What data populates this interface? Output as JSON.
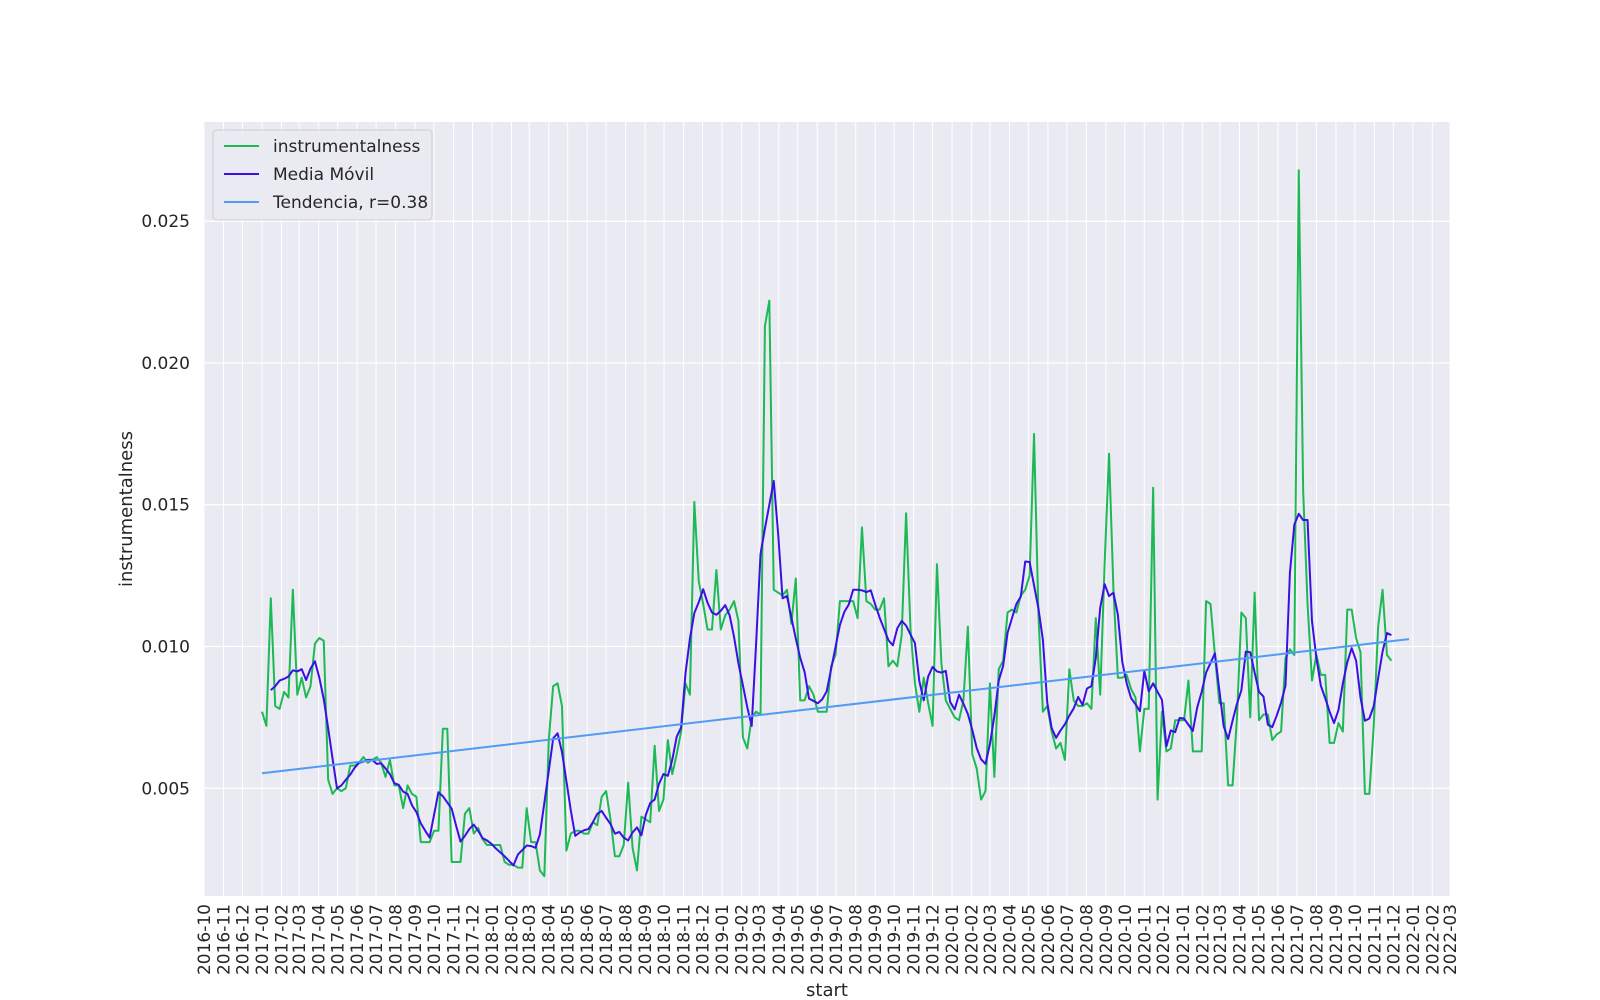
{
  "chart_data": {
    "type": "line",
    "xlabel": "start",
    "ylabel": "instrumentalness",
    "xlim": [
      "2016-10",
      "2022-03"
    ],
    "ylim": [
      0.0012,
      0.0285
    ],
    "y_ticks": [
      0.005,
      0.01,
      0.015,
      0.02,
      0.025
    ],
    "y_tick_labels": [
      "0.005",
      "0.010",
      "0.015",
      "0.020",
      "0.025"
    ],
    "x_tick_labels": [
      "2016-10",
      "2016-11",
      "2016-12",
      "2017-01",
      "2017-02",
      "2017-03",
      "2017-04",
      "2017-05",
      "2017-06",
      "2017-07",
      "2017-08",
      "2017-09",
      "2017-10",
      "2017-11",
      "2017-12",
      "2018-01",
      "2018-02",
      "2018-03",
      "2018-04",
      "2018-05",
      "2018-06",
      "2018-07",
      "2018-08",
      "2018-09",
      "2018-10",
      "2018-11",
      "2018-12",
      "2019-01",
      "2019-02",
      "2019-03",
      "2019-04",
      "2019-05",
      "2019-06",
      "2019-07",
      "2019-08",
      "2019-09",
      "2019-10",
      "2019-11",
      "2019-12",
      "2020-01",
      "2020-02",
      "2020-03",
      "2020-04",
      "2020-05",
      "2020-06",
      "2020-07",
      "2020-08",
      "2020-09",
      "2020-10",
      "2020-11",
      "2020-12",
      "2021-01",
      "2021-02",
      "2021-03",
      "2021-04",
      "2021-05",
      "2021-06",
      "2021-07",
      "2021-08",
      "2021-09",
      "2021-10",
      "2021-11",
      "2021-12",
      "2022-01",
      "2022-02",
      "2022-03"
    ],
    "grid": true,
    "legend_position": "top-left",
    "colors": {
      "background": "#eaeaf2",
      "grid": "#ffffff",
      "instrumentalness": "#1db954",
      "moving_average": "#3a10e5",
      "trend": "#509bf5"
    },
    "series": [
      {
        "name": "instrumentalness",
        "key": "raw",
        "start": "2017-01-01",
        "step_days": 7,
        "values": [
          0.0077,
          0.0072,
          0.0117,
          0.0079,
          0.0078,
          0.0084,
          0.0082,
          0.012,
          0.0083,
          0.0089,
          0.0082,
          0.0086,
          0.0101,
          0.0103,
          0.0102,
          0.0053,
          0.0048,
          0.005,
          0.0049,
          0.005,
          0.0058,
          0.0058,
          0.0059,
          0.0061,
          0.0059,
          0.006,
          0.0061,
          0.0059,
          0.0054,
          0.006,
          0.0051,
          0.0051,
          0.0043,
          0.0051,
          0.0048,
          0.0047,
          0.0031,
          0.0031,
          0.0031,
          0.0035,
          0.0035,
          0.0071,
          0.0071,
          0.0024,
          0.0024,
          0.0024,
          0.0041,
          0.0043,
          0.0034,
          0.0036,
          0.0032,
          0.003,
          0.003,
          0.003,
          0.003,
          0.0024,
          0.0023,
          0.0023,
          0.0022,
          0.0022,
          0.0043,
          0.0031,
          0.0031,
          0.0021,
          0.0019,
          0.0067,
          0.0086,
          0.0087,
          0.0079,
          0.0028,
          0.0034,
          0.0035,
          0.0035,
          0.0034,
          0.0034,
          0.0038,
          0.0037,
          0.0047,
          0.0049,
          0.0039,
          0.0026,
          0.0026,
          0.003,
          0.0052,
          0.0029,
          0.0021,
          0.004,
          0.0039,
          0.0038,
          0.0065,
          0.0042,
          0.0046,
          0.0067,
          0.0055,
          0.0062,
          0.007,
          0.0087,
          0.0083,
          0.0151,
          0.0123,
          0.0115,
          0.0106,
          0.0106,
          0.0127,
          0.0106,
          0.0111,
          0.0113,
          0.0116,
          0.0109,
          0.0068,
          0.0064,
          0.0075,
          0.0077,
          0.0076,
          0.0213,
          0.0222,
          0.012,
          0.0119,
          0.0118,
          0.012,
          0.0108,
          0.0124,
          0.0081,
          0.0081,
          0.0086,
          0.0083,
          0.0077,
          0.0077,
          0.0077,
          0.0093,
          0.0097,
          0.0116,
          0.0116,
          0.0116,
          0.0116,
          0.011,
          0.0142,
          0.0116,
          0.0115,
          0.0113,
          0.0113,
          0.0117,
          0.0093,
          0.0095,
          0.0093,
          0.0104,
          0.0147,
          0.0106,
          0.0087,
          0.0077,
          0.0089,
          0.008,
          0.0072,
          0.0129,
          0.0094,
          0.0081,
          0.0078,
          0.0075,
          0.0074,
          0.0081,
          0.0107,
          0.0062,
          0.0057,
          0.0046,
          0.0049,
          0.0087,
          0.0054,
          0.0092,
          0.0095,
          0.0112,
          0.0113,
          0.0112,
          0.0118,
          0.012,
          0.0125,
          0.0175,
          0.0111,
          0.0077,
          0.0079,
          0.007,
          0.0064,
          0.0066,
          0.006,
          0.0092,
          0.0081,
          0.0079,
          0.0079,
          0.008,
          0.0078,
          0.011,
          0.0083,
          0.0129,
          0.0168,
          0.012,
          0.0089,
          0.0089,
          0.009,
          0.0085,
          0.0082,
          0.0063,
          0.0078,
          0.0078,
          0.0156,
          0.0046,
          0.0077,
          0.0063,
          0.0064,
          0.0074,
          0.0074,
          0.0074,
          0.0088,
          0.0063,
          0.0063,
          0.0063,
          0.0116,
          0.0115,
          0.0097,
          0.008,
          0.008,
          0.0051,
          0.0051,
          0.0075,
          0.0112,
          0.011,
          0.0075,
          0.0119,
          0.0074,
          0.0076,
          0.0076,
          0.0067,
          0.0069,
          0.007,
          0.0096,
          0.0099,
          0.0097,
          0.0268,
          0.0155,
          0.0115,
          0.0088,
          0.0097,
          0.009,
          0.009,
          0.0066,
          0.0066,
          0.0073,
          0.007,
          0.0113,
          0.0113,
          0.0103,
          0.0098,
          0.0048,
          0.0048,
          0.0072,
          0.0107,
          0.012,
          0.0097,
          0.0095
        ],
        "valid_from": 0
      },
      {
        "name": "Media Móvil",
        "key": "moving_average",
        "start": "2017-01-01",
        "step_days": 7,
        "valid_from": 2,
        "values": []
      },
      {
        "name": "Tendencia, r=0.38",
        "key": "trend",
        "x": [
          "2017-01-01",
          "2021-12-26"
        ],
        "values": [
          0.00553,
          0.01026
        ]
      }
    ]
  }
}
